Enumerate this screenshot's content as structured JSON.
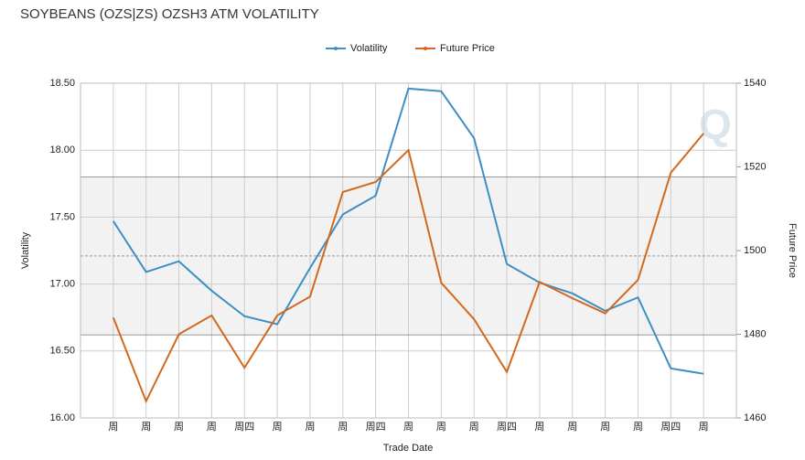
{
  "chart_data": {
    "type": "line",
    "title": "SOYBEANS (OZS|ZS) OZSH3 ATM VOLATILITY",
    "x_label": "Trade Date",
    "y_label": "Volatility",
    "y2_label": "Future Price",
    "categories": [
      "周",
      "周",
      "周",
      "周",
      "周四",
      "周",
      "周",
      "周",
      "周四",
      "周",
      "周",
      "周",
      "周四",
      "周",
      "周",
      "周",
      "周",
      "周四",
      "周"
    ],
    "series": [
      {
        "name": "Volatility",
        "color": "#3d8fc4",
        "values": [
          17.47,
          17.09,
          17.17,
          16.95,
          16.76,
          16.7,
          17.12,
          17.52,
          17.66,
          18.46,
          18.44,
          18.09,
          17.15,
          17.01,
          16.93,
          16.8,
          16.9,
          16.37,
          16.33
        ]
      },
      {
        "name": "Future Price",
        "color": "#d2691e",
        "axis": "y2",
        "values": [
          1484,
          1464,
          1480,
          1484.5,
          1472,
          1484.5,
          1489,
          1514,
          1516.4,
          1524,
          1492.3,
          1483.6,
          1471,
          1492.5,
          1488.6,
          1485,
          1493,
          1518.6,
          1528
        ]
      }
    ],
    "band": [
      16.62,
      17.8
    ],
    "band_mid": 17.21,
    "ylim": [
      16,
      18.5
    ],
    "yticks": [
      {
        "value": 16,
        "label": "16.00"
      },
      {
        "value": 16.5,
        "label": "16.50"
      },
      {
        "value": 17,
        "label": "17.00"
      },
      {
        "value": 17.5,
        "label": "17.50"
      },
      {
        "value": 18,
        "label": "18.00"
      },
      {
        "value": 18.5,
        "label": "18.50"
      }
    ],
    "y2lim": [
      1460,
      1540
    ],
    "y2ticks": [
      1460,
      1480,
      1500,
      1520,
      1540
    ],
    "grid": true,
    "legend": "top"
  }
}
